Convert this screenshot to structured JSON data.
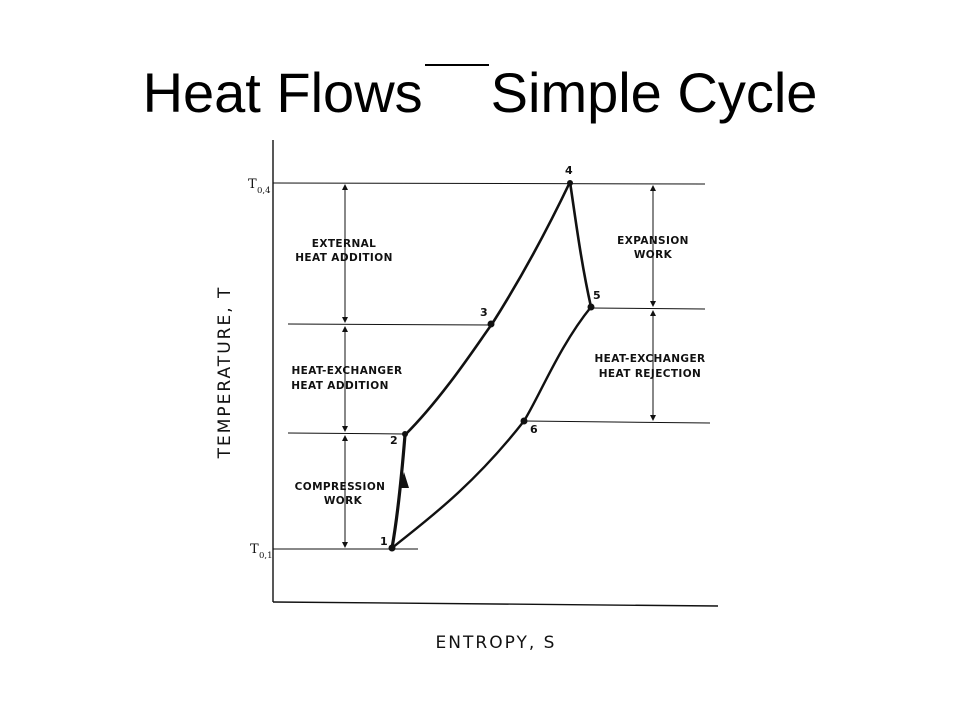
{
  "title": {
    "part1": "Heat Flows",
    "part2": "Simple Cycle"
  },
  "diagram": {
    "y_axis_label": "TEMPERATURE, T",
    "x_axis_label": "ENTROPY, S",
    "t_top_label": {
      "main": "T",
      "sub": "0,4"
    },
    "t_bottom_label": {
      "main": "T",
      "sub": "0,1"
    },
    "points": [
      "1",
      "2",
      "3",
      "4",
      "5",
      "6"
    ],
    "left_annotations": {
      "external_heat": [
        "EXTERNAL",
        "HEAT ADDITION"
      ],
      "hx_heat_addition": [
        "HEAT-EXCHANGER",
        "HEAT ADDITION"
      ],
      "compression": [
        "COMPRESSION",
        "WORK"
      ]
    },
    "right_annotations": {
      "expansion": [
        "EXPANSION",
        "WORK"
      ],
      "hx_heat_rejection": [
        "HEAT-EXCHANGER",
        "HEAT REJECTION"
      ]
    }
  }
}
